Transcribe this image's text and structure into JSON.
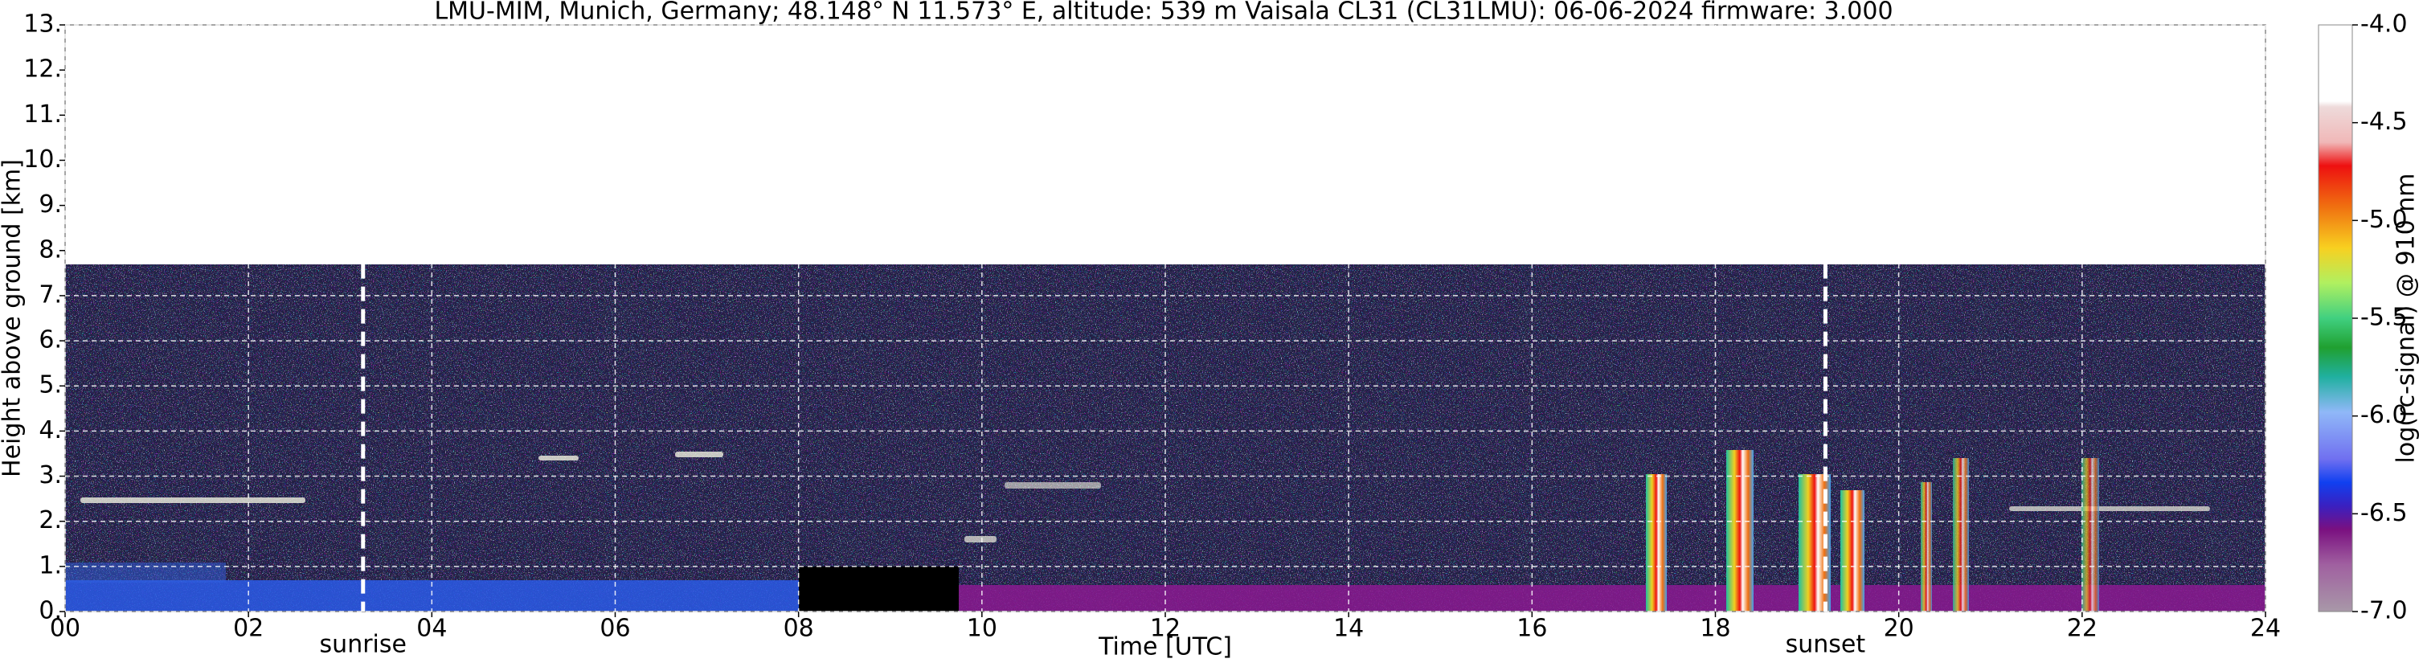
{
  "chart_data": {
    "type": "heatmap",
    "title": "LMU-MIM, Munich, Germany; 48.148° N 11.573° E, altitude: 539 m    Vaisala CL31 (CL31LMU): 06-06-2024    firmware: 3.000",
    "xlabel": "Time [UTC]",
    "ylabel": "Height above ground [km]",
    "colorbar_label": "log(rc-signal) @ 910 nm",
    "xlim": [
      0,
      24
    ],
    "xticks": [
      {
        "value": 0,
        "label": "00"
      },
      {
        "value": 2,
        "label": "02"
      },
      {
        "value": 4,
        "label": "04"
      },
      {
        "value": 6,
        "label": "06"
      },
      {
        "value": 8,
        "label": "08"
      },
      {
        "value": 10,
        "label": "10"
      },
      {
        "value": 12,
        "label": "12"
      },
      {
        "value": 14,
        "label": "14"
      },
      {
        "value": 16,
        "label": "16"
      },
      {
        "value": 18,
        "label": "18"
      },
      {
        "value": 20,
        "label": "20"
      },
      {
        "value": 22,
        "label": "22"
      },
      {
        "value": 24,
        "label": "24"
      }
    ],
    "ylim": [
      0,
      13
    ],
    "yticks": [
      {
        "value": 0,
        "label": "0."
      },
      {
        "value": 1,
        "label": "1."
      },
      {
        "value": 2,
        "label": "2."
      },
      {
        "value": 3,
        "label": "3."
      },
      {
        "value": 4,
        "label": "4."
      },
      {
        "value": 5,
        "label": "5."
      },
      {
        "value": 6,
        "label": "6."
      },
      {
        "value": 7,
        "label": "7."
      },
      {
        "value": 8,
        "label": "8."
      },
      {
        "value": 9,
        "label": "9."
      },
      {
        "value": 10,
        "label": "10."
      },
      {
        "value": 11,
        "label": "11."
      },
      {
        "value": 12,
        "label": "12."
      },
      {
        "value": 13,
        "label": "13."
      }
    ],
    "clim": [
      -7,
      -4
    ],
    "cticks": [
      {
        "value": -4,
        "label": "-4.0"
      },
      {
        "value": -4.5,
        "label": "-4.5"
      },
      {
        "value": -5,
        "label": "-5.0"
      },
      {
        "value": -5.5,
        "label": "-5.5"
      },
      {
        "value": -6,
        "label": "-6.0"
      },
      {
        "value": -6.5,
        "label": "-6.5"
      },
      {
        "value": -7,
        "label": "-7.0"
      }
    ],
    "grid": true,
    "annotations": [
      {
        "text": "sunrise",
        "x": 3.25
      },
      {
        "text": "sunset",
        "x": 19.2
      }
    ]
  }
}
